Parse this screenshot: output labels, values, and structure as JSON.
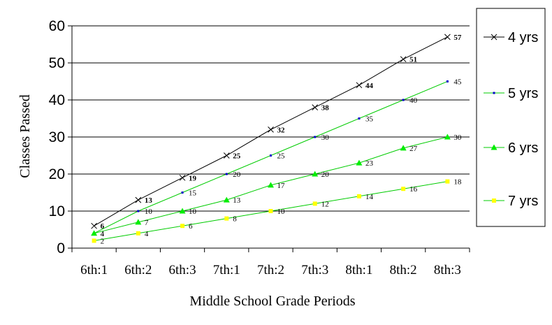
{
  "chart_data": {
    "type": "line",
    "title": "",
    "xlabel": "Middle School Grade Periods",
    "ylabel": "Classes Passed",
    "ylim": [
      0,
      60
    ],
    "yticks": [
      0,
      10,
      20,
      30,
      40,
      50,
      60
    ],
    "categories": [
      "6th:1",
      "6th:2",
      "6th:3",
      "7th:1",
      "7th:2",
      "7th:3",
      "8th:1",
      "8th:2",
      "8th:3"
    ],
    "grid": "horizontal",
    "legend_position": "right",
    "series": [
      {
        "name": "4 yrs",
        "values": [
          6,
          13,
          19,
          25,
          32,
          38,
          44,
          51,
          57
        ],
        "line_color": "#000000",
        "marker": "x",
        "marker_color": "#000000",
        "labels_bold": true
      },
      {
        "name": "5 yrs",
        "values": [
          4,
          10,
          15,
          20,
          25,
          30,
          35,
          40,
          45
        ],
        "line_color": "#00cc00",
        "marker": "dot",
        "marker_color": "#0000cc",
        "labels_bold": false
      },
      {
        "name": "6 yrs",
        "values": [
          4,
          7,
          10,
          13,
          17,
          20,
          23,
          27,
          30
        ],
        "line_color": "#00cc00",
        "marker": "triangle",
        "marker_color": "#00ee00",
        "labels_bold": false
      },
      {
        "name": "7 yrs",
        "values": [
          2,
          4,
          6,
          8,
          10,
          12,
          14,
          16,
          18
        ],
        "line_color": "#00cc00",
        "marker": "square",
        "marker_color": "#ffff00",
        "labels_bold": false
      }
    ]
  }
}
